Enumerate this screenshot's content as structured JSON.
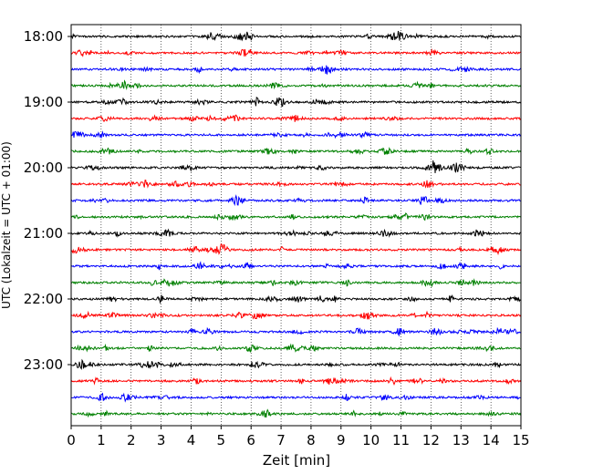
{
  "chart_data": {
    "type": "line",
    "title": "",
    "xlabel": "Zeit  [min]",
    "ylabel": "UTC (Lokalzeit = UTC + 01:00)",
    "xlim": [
      0,
      15
    ],
    "x_ticks": [
      "0",
      "1",
      "2",
      "3",
      "4",
      "5",
      "6",
      "7",
      "8",
      "9",
      "10",
      "11",
      "12",
      "13",
      "14",
      "15"
    ],
    "y_ticks": [
      "18:00",
      "19:00",
      "20:00",
      "21:00",
      "22:00",
      "23:00"
    ],
    "vertical_gridlines": "dotted",
    "trace_colors": [
      "#000000",
      "#ff0000",
      "#0000ff",
      "#008000"
    ],
    "traces_start": "18:00",
    "trace_interval_min": 15,
    "trace_count": 24
  }
}
